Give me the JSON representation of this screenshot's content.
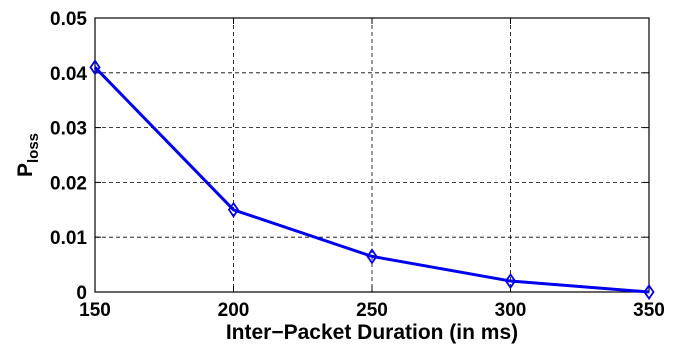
{
  "chart_data": {
    "type": "line",
    "title": "",
    "xlabel": "Inter−Packet Duration (in ms)",
    "ylabel": "P",
    "ylabel_subscript": "loss",
    "xlim": [
      150,
      350
    ],
    "ylim": [
      0,
      0.05
    ],
    "x_ticks": [
      "150",
      "200",
      "250",
      "300",
      "350"
    ],
    "y_ticks": [
      "0",
      "0.01",
      "0.02",
      "0.03",
      "0.04",
      "0.05"
    ],
    "grid": true,
    "series": [
      {
        "x": [
          150,
          200,
          250,
          300,
          350
        ],
        "values": [
          0.041,
          0.015,
          0.0065,
          0.002,
          0.0
        ],
        "marker": "diamond",
        "color": "#0000ee"
      }
    ]
  }
}
